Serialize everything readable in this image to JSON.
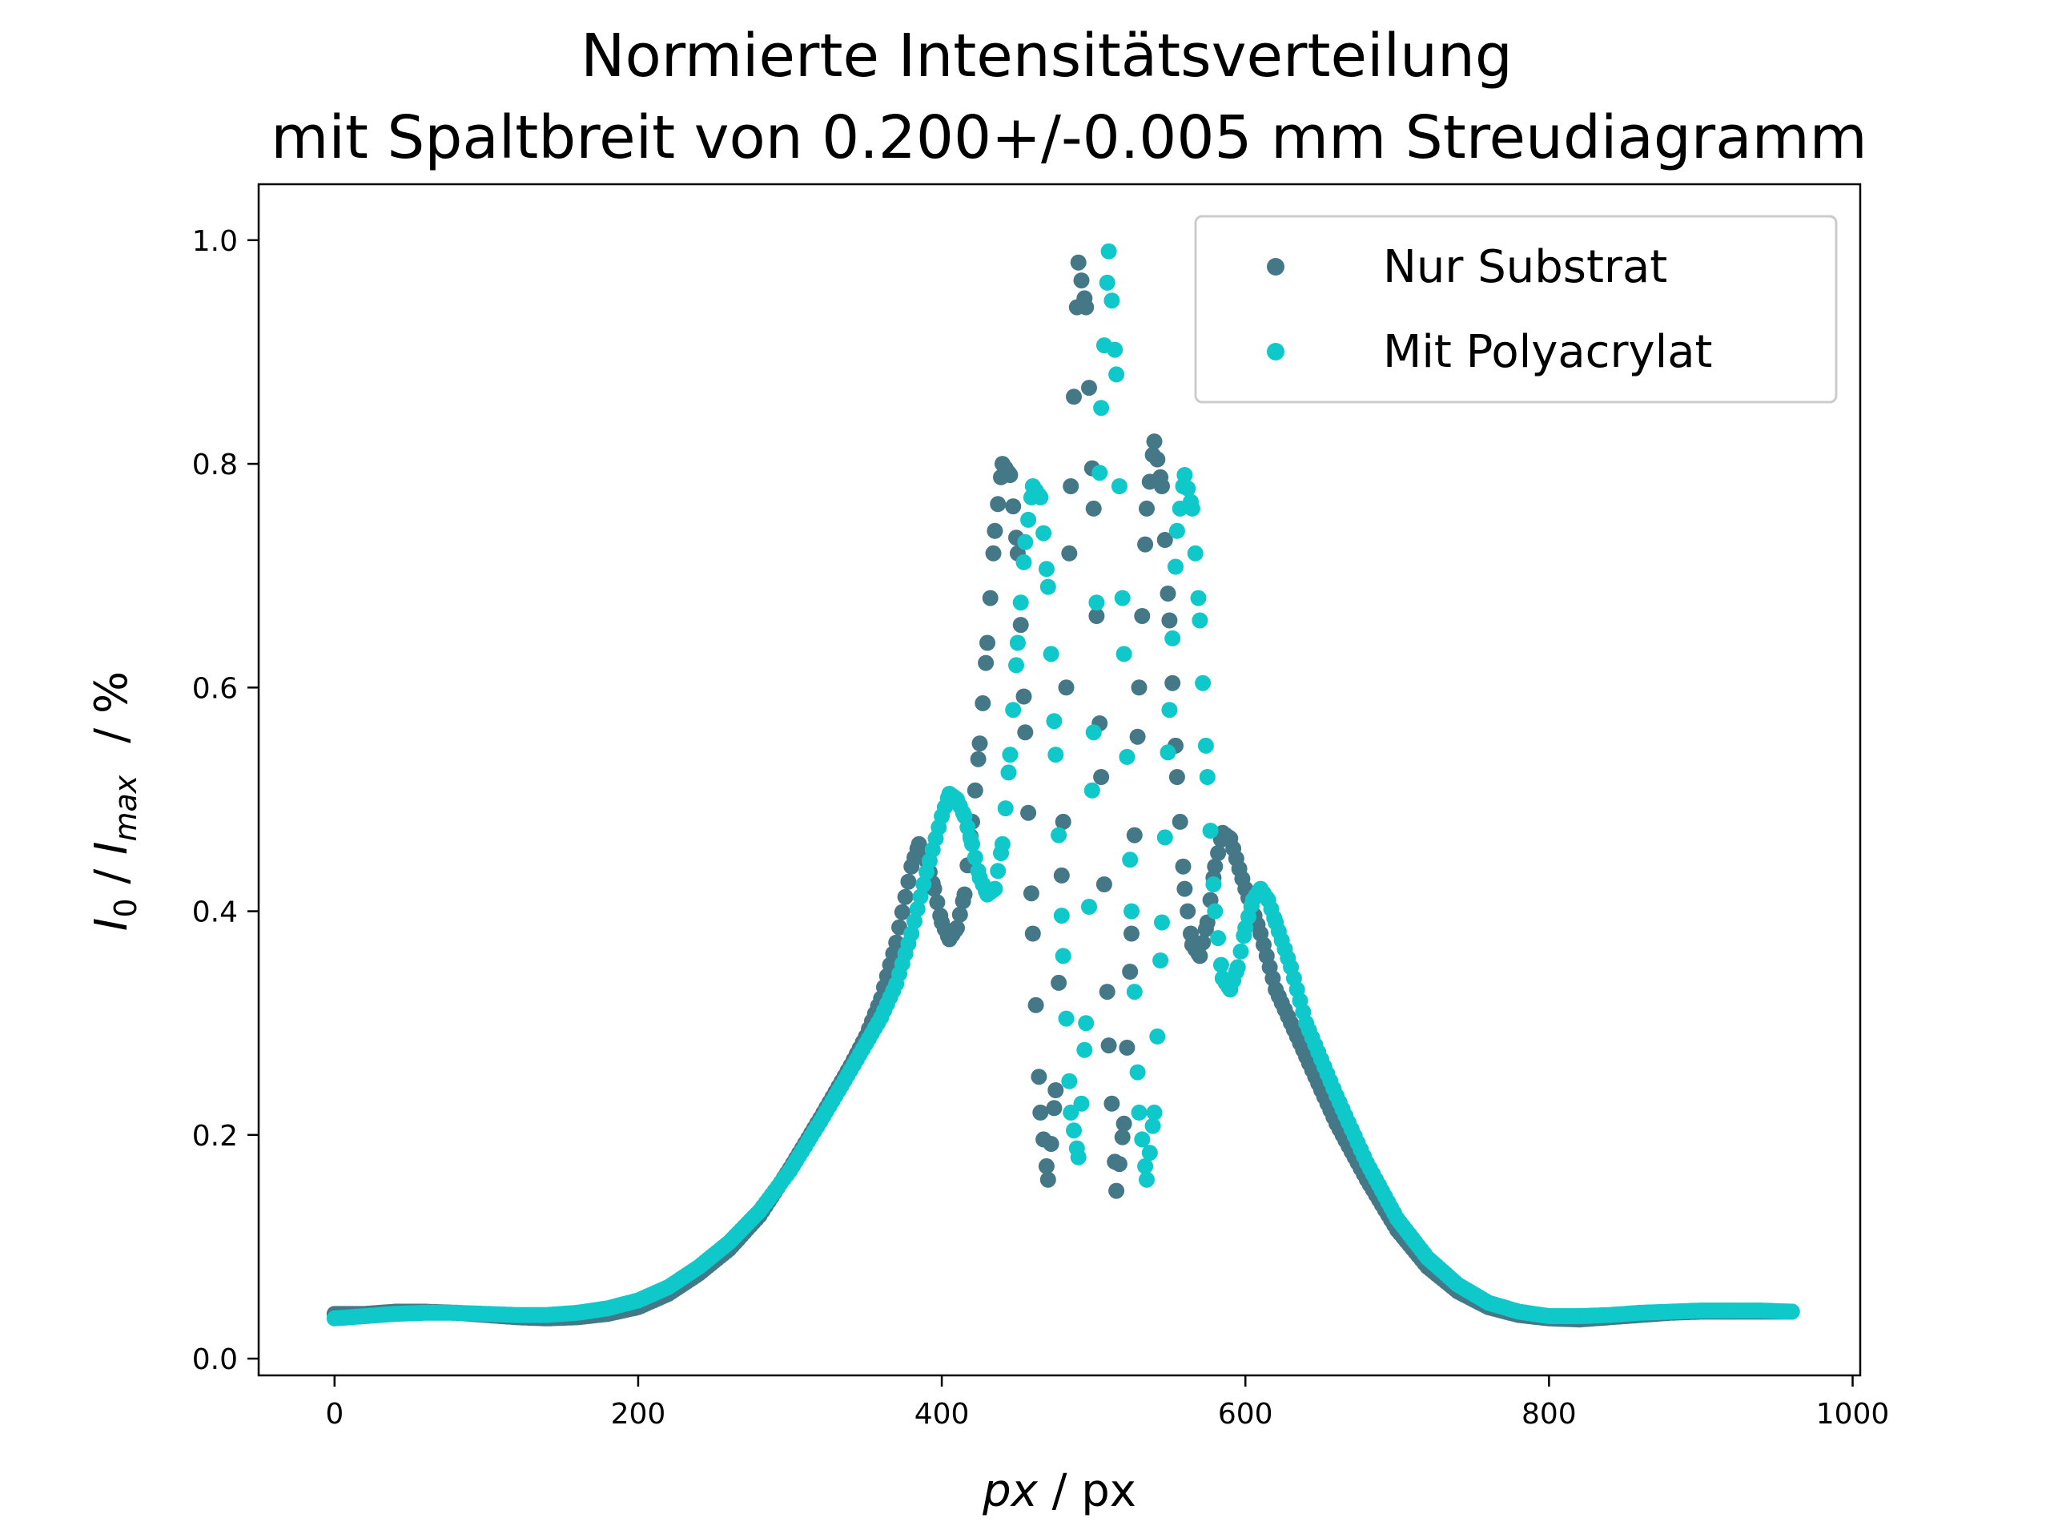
{
  "chart_data": {
    "type": "scatter",
    "title_line1": "Normierte Intensitätsverteilung",
    "title_line2": "mit Spaltbreit von 0.200+/-0.005 mm Streudiagramm",
    "xlabel": {
      "var": "px",
      "unit": " / px"
    },
    "ylabel": {
      "main": "I",
      "sub0": "0",
      "sep": " / ",
      "sub_max": "max",
      "unit": "/ %"
    },
    "xlim": [
      -50,
      1005
    ],
    "ylim": [
      -0.015,
      1.05
    ],
    "xticks": [
      0,
      200,
      400,
      600,
      800,
      1000
    ],
    "yticks": [
      0.0,
      0.2,
      0.4,
      0.6,
      0.8,
      1.0
    ],
    "xtick_labels": [
      "0",
      "200",
      "400",
      "600",
      "800",
      "1000"
    ],
    "ytick_labels": [
      "0.0",
      "0.2",
      "0.4",
      "0.6",
      "0.8",
      "1.0"
    ],
    "grid": false,
    "legend_position": "top-right",
    "series": [
      {
        "name": "Nur Substrat",
        "color": "#457887",
        "points": [
          [
            0,
            0.04
          ],
          [
            20,
            0.04
          ],
          [
            40,
            0.042
          ],
          [
            60,
            0.042
          ],
          [
            80,
            0.041
          ],
          [
            100,
            0.039
          ],
          [
            120,
            0.037
          ],
          [
            140,
            0.036
          ],
          [
            160,
            0.037
          ],
          [
            180,
            0.04
          ],
          [
            200,
            0.046
          ],
          [
            220,
            0.058
          ],
          [
            240,
            0.076
          ],
          [
            260,
            0.098
          ],
          [
            280,
            0.128
          ],
          [
            300,
            0.17
          ],
          [
            320,
            0.215
          ],
          [
            340,
            0.262
          ],
          [
            350,
            0.288
          ],
          [
            360,
            0.322
          ],
          [
            370,
            0.372
          ],
          [
            380,
            0.44
          ],
          [
            385,
            0.46
          ],
          [
            390,
            0.445
          ],
          [
            395,
            0.42
          ],
          [
            400,
            0.39
          ],
          [
            405,
            0.375
          ],
          [
            410,
            0.385
          ],
          [
            415,
            0.415
          ],
          [
            420,
            0.48
          ],
          [
            425,
            0.55
          ],
          [
            430,
            0.64
          ],
          [
            435,
            0.74
          ],
          [
            440,
            0.8
          ],
          [
            445,
            0.79
          ],
          [
            450,
            0.72
          ],
          [
            455,
            0.56
          ],
          [
            460,
            0.38
          ],
          [
            465,
            0.22
          ],
          [
            470,
            0.16
          ],
          [
            475,
            0.24
          ],
          [
            480,
            0.48
          ],
          [
            485,
            0.78
          ],
          [
            490,
            0.98
          ],
          [
            495,
            0.94
          ],
          [
            500,
            0.76
          ],
          [
            505,
            0.52
          ],
          [
            510,
            0.28
          ],
          [
            515,
            0.15
          ],
          [
            520,
            0.21
          ],
          [
            525,
            0.38
          ],
          [
            530,
            0.6
          ],
          [
            535,
            0.76
          ],
          [
            540,
            0.82
          ],
          [
            545,
            0.78
          ],
          [
            550,
            0.66
          ],
          [
            555,
            0.52
          ],
          [
            560,
            0.42
          ],
          [
            565,
            0.37
          ],
          [
            570,
            0.36
          ],
          [
            575,
            0.39
          ],
          [
            580,
            0.44
          ],
          [
            585,
            0.47
          ],
          [
            590,
            0.465
          ],
          [
            600,
            0.42
          ],
          [
            610,
            0.38
          ],
          [
            620,
            0.33
          ],
          [
            640,
            0.27
          ],
          [
            660,
            0.21
          ],
          [
            680,
            0.16
          ],
          [
            700,
            0.115
          ],
          [
            720,
            0.082
          ],
          [
            740,
            0.06
          ],
          [
            760,
            0.046
          ],
          [
            780,
            0.039
          ],
          [
            800,
            0.036
          ],
          [
            820,
            0.035
          ],
          [
            840,
            0.037
          ],
          [
            860,
            0.039
          ],
          [
            880,
            0.041
          ],
          [
            900,
            0.042
          ],
          [
            920,
            0.042
          ],
          [
            940,
            0.042
          ],
          [
            960,
            0.042
          ]
        ]
      },
      {
        "name": "Mit Polyacrylat",
        "color": "#0ec8ca",
        "points": [
          [
            0,
            0.036
          ],
          [
            20,
            0.038
          ],
          [
            40,
            0.04
          ],
          [
            60,
            0.041
          ],
          [
            80,
            0.041
          ],
          [
            100,
            0.04
          ],
          [
            120,
            0.039
          ],
          [
            140,
            0.039
          ],
          [
            160,
            0.041
          ],
          [
            180,
            0.045
          ],
          [
            200,
            0.052
          ],
          [
            220,
            0.064
          ],
          [
            240,
            0.082
          ],
          [
            260,
            0.104
          ],
          [
            280,
            0.132
          ],
          [
            300,
            0.168
          ],
          [
            320,
            0.212
          ],
          [
            340,
            0.258
          ],
          [
            360,
            0.305
          ],
          [
            370,
            0.335
          ],
          [
            380,
            0.38
          ],
          [
            390,
            0.435
          ],
          [
            400,
            0.485
          ],
          [
            405,
            0.505
          ],
          [
            410,
            0.5
          ],
          [
            415,
            0.485
          ],
          [
            420,
            0.46
          ],
          [
            425,
            0.43
          ],
          [
            430,
            0.415
          ],
          [
            435,
            0.42
          ],
          [
            440,
            0.46
          ],
          [
            445,
            0.54
          ],
          [
            450,
            0.64
          ],
          [
            455,
            0.73
          ],
          [
            460,
            0.78
          ],
          [
            465,
            0.77
          ],
          [
            470,
            0.69
          ],
          [
            475,
            0.54
          ],
          [
            480,
            0.36
          ],
          [
            485,
            0.22
          ],
          [
            490,
            0.18
          ],
          [
            495,
            0.3
          ],
          [
            500,
            0.56
          ],
          [
            505,
            0.85
          ],
          [
            510,
            0.99
          ],
          [
            515,
            0.88
          ],
          [
            520,
            0.63
          ],
          [
            525,
            0.4
          ],
          [
            530,
            0.22
          ],
          [
            535,
            0.16
          ],
          [
            540,
            0.22
          ],
          [
            545,
            0.39
          ],
          [
            550,
            0.58
          ],
          [
            555,
            0.74
          ],
          [
            560,
            0.79
          ],
          [
            565,
            0.76
          ],
          [
            570,
            0.66
          ],
          [
            575,
            0.52
          ],
          [
            580,
            0.4
          ],
          [
            585,
            0.34
          ],
          [
            590,
            0.33
          ],
          [
            595,
            0.35
          ],
          [
            600,
            0.385
          ],
          [
            605,
            0.41
          ],
          [
            610,
            0.42
          ],
          [
            615,
            0.41
          ],
          [
            620,
            0.39
          ],
          [
            630,
            0.35
          ],
          [
            640,
            0.3
          ],
          [
            660,
            0.235
          ],
          [
            680,
            0.175
          ],
          [
            700,
            0.125
          ],
          [
            720,
            0.09
          ],
          [
            740,
            0.066
          ],
          [
            760,
            0.05
          ],
          [
            780,
            0.042
          ],
          [
            800,
            0.038
          ],
          [
            820,
            0.038
          ],
          [
            840,
            0.039
          ],
          [
            860,
            0.041
          ],
          [
            880,
            0.042
          ],
          [
            900,
            0.043
          ],
          [
            920,
            0.043
          ],
          [
            940,
            0.043
          ],
          [
            960,
            0.042
          ]
        ]
      }
    ]
  }
}
